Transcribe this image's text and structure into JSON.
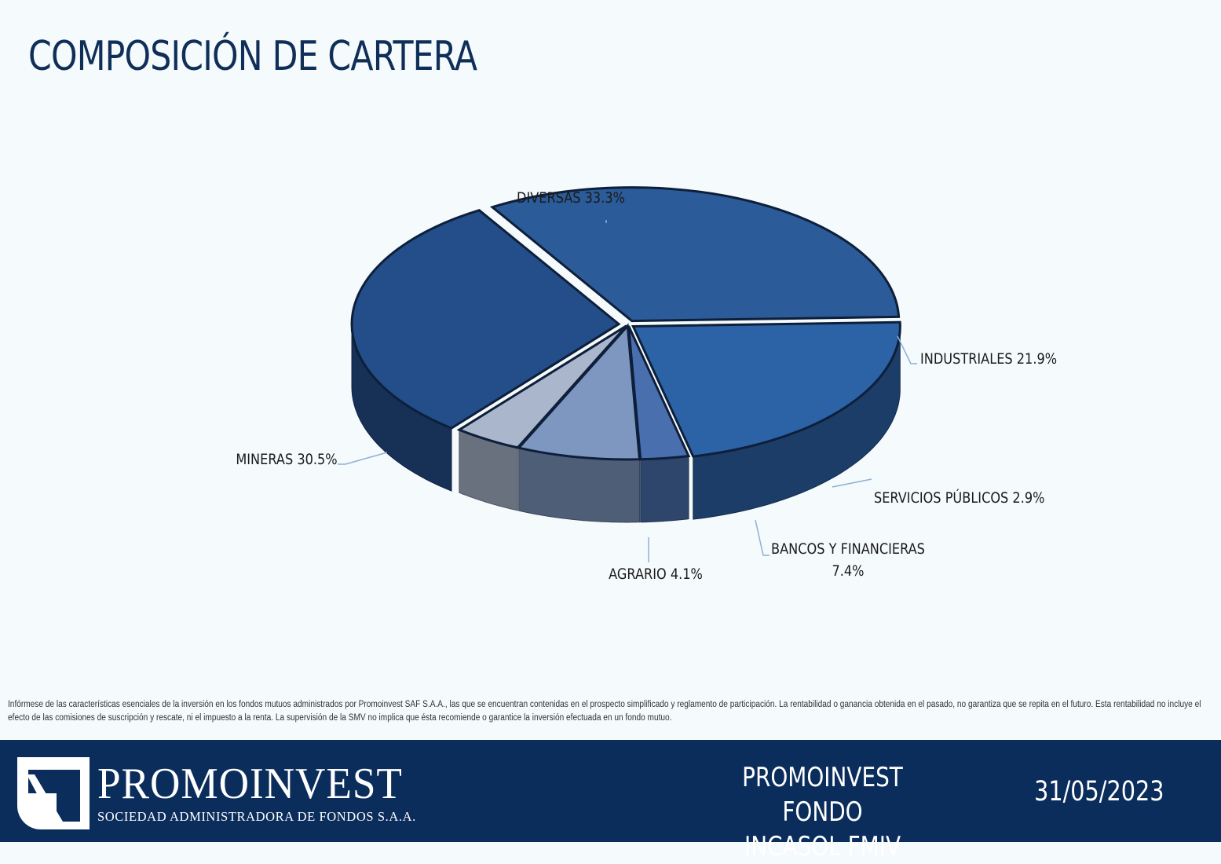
{
  "title": "COMPOSICIÓN DE CARTERA",
  "chart_data": {
    "type": "pie",
    "title": "",
    "categories": [
      "DIVERSAS",
      "INDUSTRIALES",
      "SERVICIOS PÚBLICOS",
      "BANCOS Y FINANCIERAS",
      "AGRARIO",
      "MINERAS"
    ],
    "values": [
      33.3,
      21.9,
      2.9,
      7.4,
      4.1,
      30.5
    ],
    "labels": [
      "DIVERSAS 33.3%",
      "INDUSTRIALES 21.9%",
      "SERVICIOS PÚBLICOS 2.9%",
      "BANCOS Y FINANCIERAS",
      "AGRARIO 4.1%",
      "MINERAS 30.5%"
    ],
    "label_second_lines": [
      "",
      "",
      "",
      "7.4%",
      "",
      ""
    ],
    "colors": [
      "#2b5b98",
      "#2c62a6",
      "#4a6fae",
      "#7e97c0",
      "#aab6cc",
      "#234e8a"
    ],
    "style": "3d-exploded",
    "legend": "none"
  },
  "disclaimer": "Infórmese de las características esenciales de la inversión en los fondos mutuos administrados por Promoinvest SAF S.A.A., las que se encuentran contenidas en el prospecto simplificado y reglamento de participación. La rentabilidad o ganancia obtenida en el pasado, no garantiza que se repita en el futuro. Esta rentabilidad no incluye el efecto de las comisiones de suscripción y rescate, ni el impuesto a la renta. La supervisión de la SMV no implica que ésta recomiende o garantice la inversión efectuada en un fondo mutuo.",
  "footer": {
    "company": "PROMOINVEST",
    "tagline": "SOCIEDAD ADMINISTRADORA DE FONDOS S.A.A.",
    "fund_line1": "PROMOINVEST FONDO",
    "fund_line2": "INCASOL FMIV",
    "date": "31/05/2023",
    "background": "#0b2d5c"
  }
}
